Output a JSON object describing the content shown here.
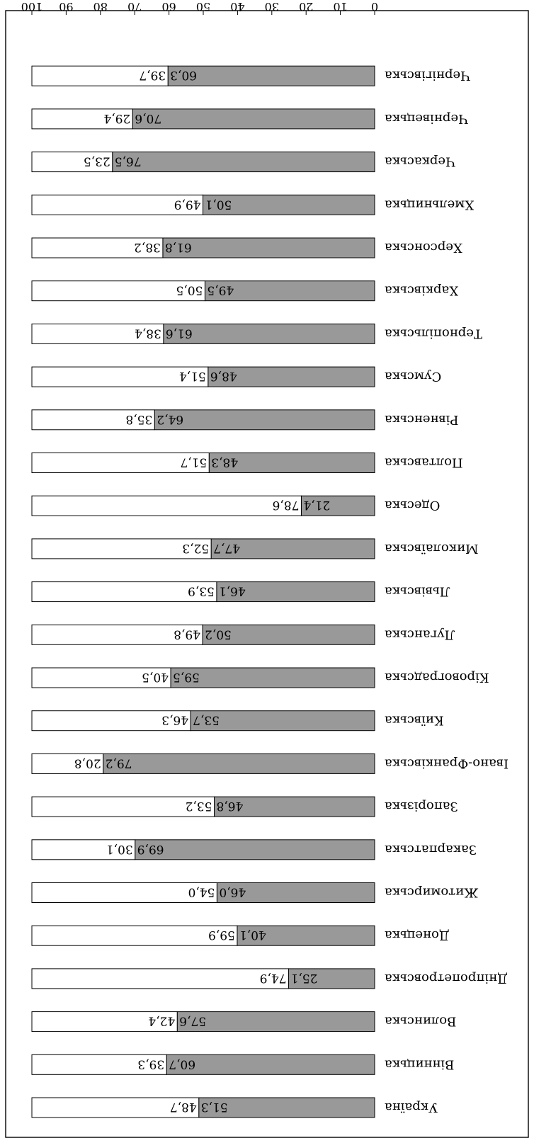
{
  "chart_data": {
    "type": "bar",
    "orientation": "horizontal-stacked-100",
    "page_rotation": "rotated 180 degrees",
    "categories": [
      "Україна",
      "Вінницька",
      "Волинська",
      "Дніпропетровська",
      "Донецька",
      "Житомирська",
      "Закарпатська",
      "Запорізька",
      "Івано-Франківська",
      "Київська",
      "Кіровоградська",
      "Луганська",
      "Львівська",
      "Миколаївська",
      "Одеська",
      "Полтавська",
      "Рівненська",
      "Сумська",
      "Тернопільська",
      "Харківська",
      "Херсонська",
      "Хмельницька",
      "Черкаська",
      "Чернівецька",
      "Чернігівська"
    ],
    "series": [
      {
        "color": "#999999",
        "values": [
          51.3,
          60.7,
          57.6,
          25.1,
          40.1,
          46.0,
          69.9,
          46.8,
          79.2,
          53.7,
          59.5,
          50.2,
          46.1,
          47.7,
          21.4,
          48.3,
          64.2,
          48.6,
          61.6,
          49.5,
          61.8,
          50.1,
          76.5,
          70.6,
          60.3
        ]
      },
      {
        "color": "#ffffff",
        "values": [
          48.7,
          39.3,
          42.4,
          74.9,
          59.9,
          54.0,
          30.1,
          53.2,
          20.8,
          46.3,
          40.5,
          49.8,
          53.9,
          52.3,
          78.6,
          51.7,
          35.8,
          51.4,
          38.4,
          50.5,
          38.2,
          49.9,
          23.5,
          29.4,
          39.7
        ]
      }
    ],
    "value_labels": {
      "shaded": [
        "51,3",
        "60,7",
        "57,6",
        "25,1",
        "40,1",
        "46,0",
        "69,9",
        "46,8",
        "79,2",
        "53,7",
        "59,5",
        "50,2",
        "46,1",
        "47,7",
        "21,4",
        "48,3",
        "64,2",
        "48,6",
        "61,6",
        "49,5",
        "61,8",
        "50,1",
        "76,5",
        "70,6",
        "60,3"
      ],
      "white": [
        "48,7",
        "39,3",
        "42,4",
        "74,9",
        "59,9",
        "54,0",
        "30,1",
        "53,2",
        "20,8",
        "46,3",
        "40,5",
        "49,8",
        "53,9",
        "52,3",
        "78,6",
        "51,7",
        "35,8",
        "51,4",
        "38,4",
        "50,5",
        "38,2",
        "49,9",
        "23,5",
        "29,4",
        "39,7"
      ]
    },
    "x_ticks": [
      "0",
      "10",
      "20",
      "30",
      "40",
      "50",
      "60",
      "70",
      "80",
      "90",
      "100"
    ],
    "xlim": [
      0,
      100
    ],
    "grid": false,
    "legend": "none",
    "title": "",
    "xlabel": "",
    "ylabel": ""
  }
}
